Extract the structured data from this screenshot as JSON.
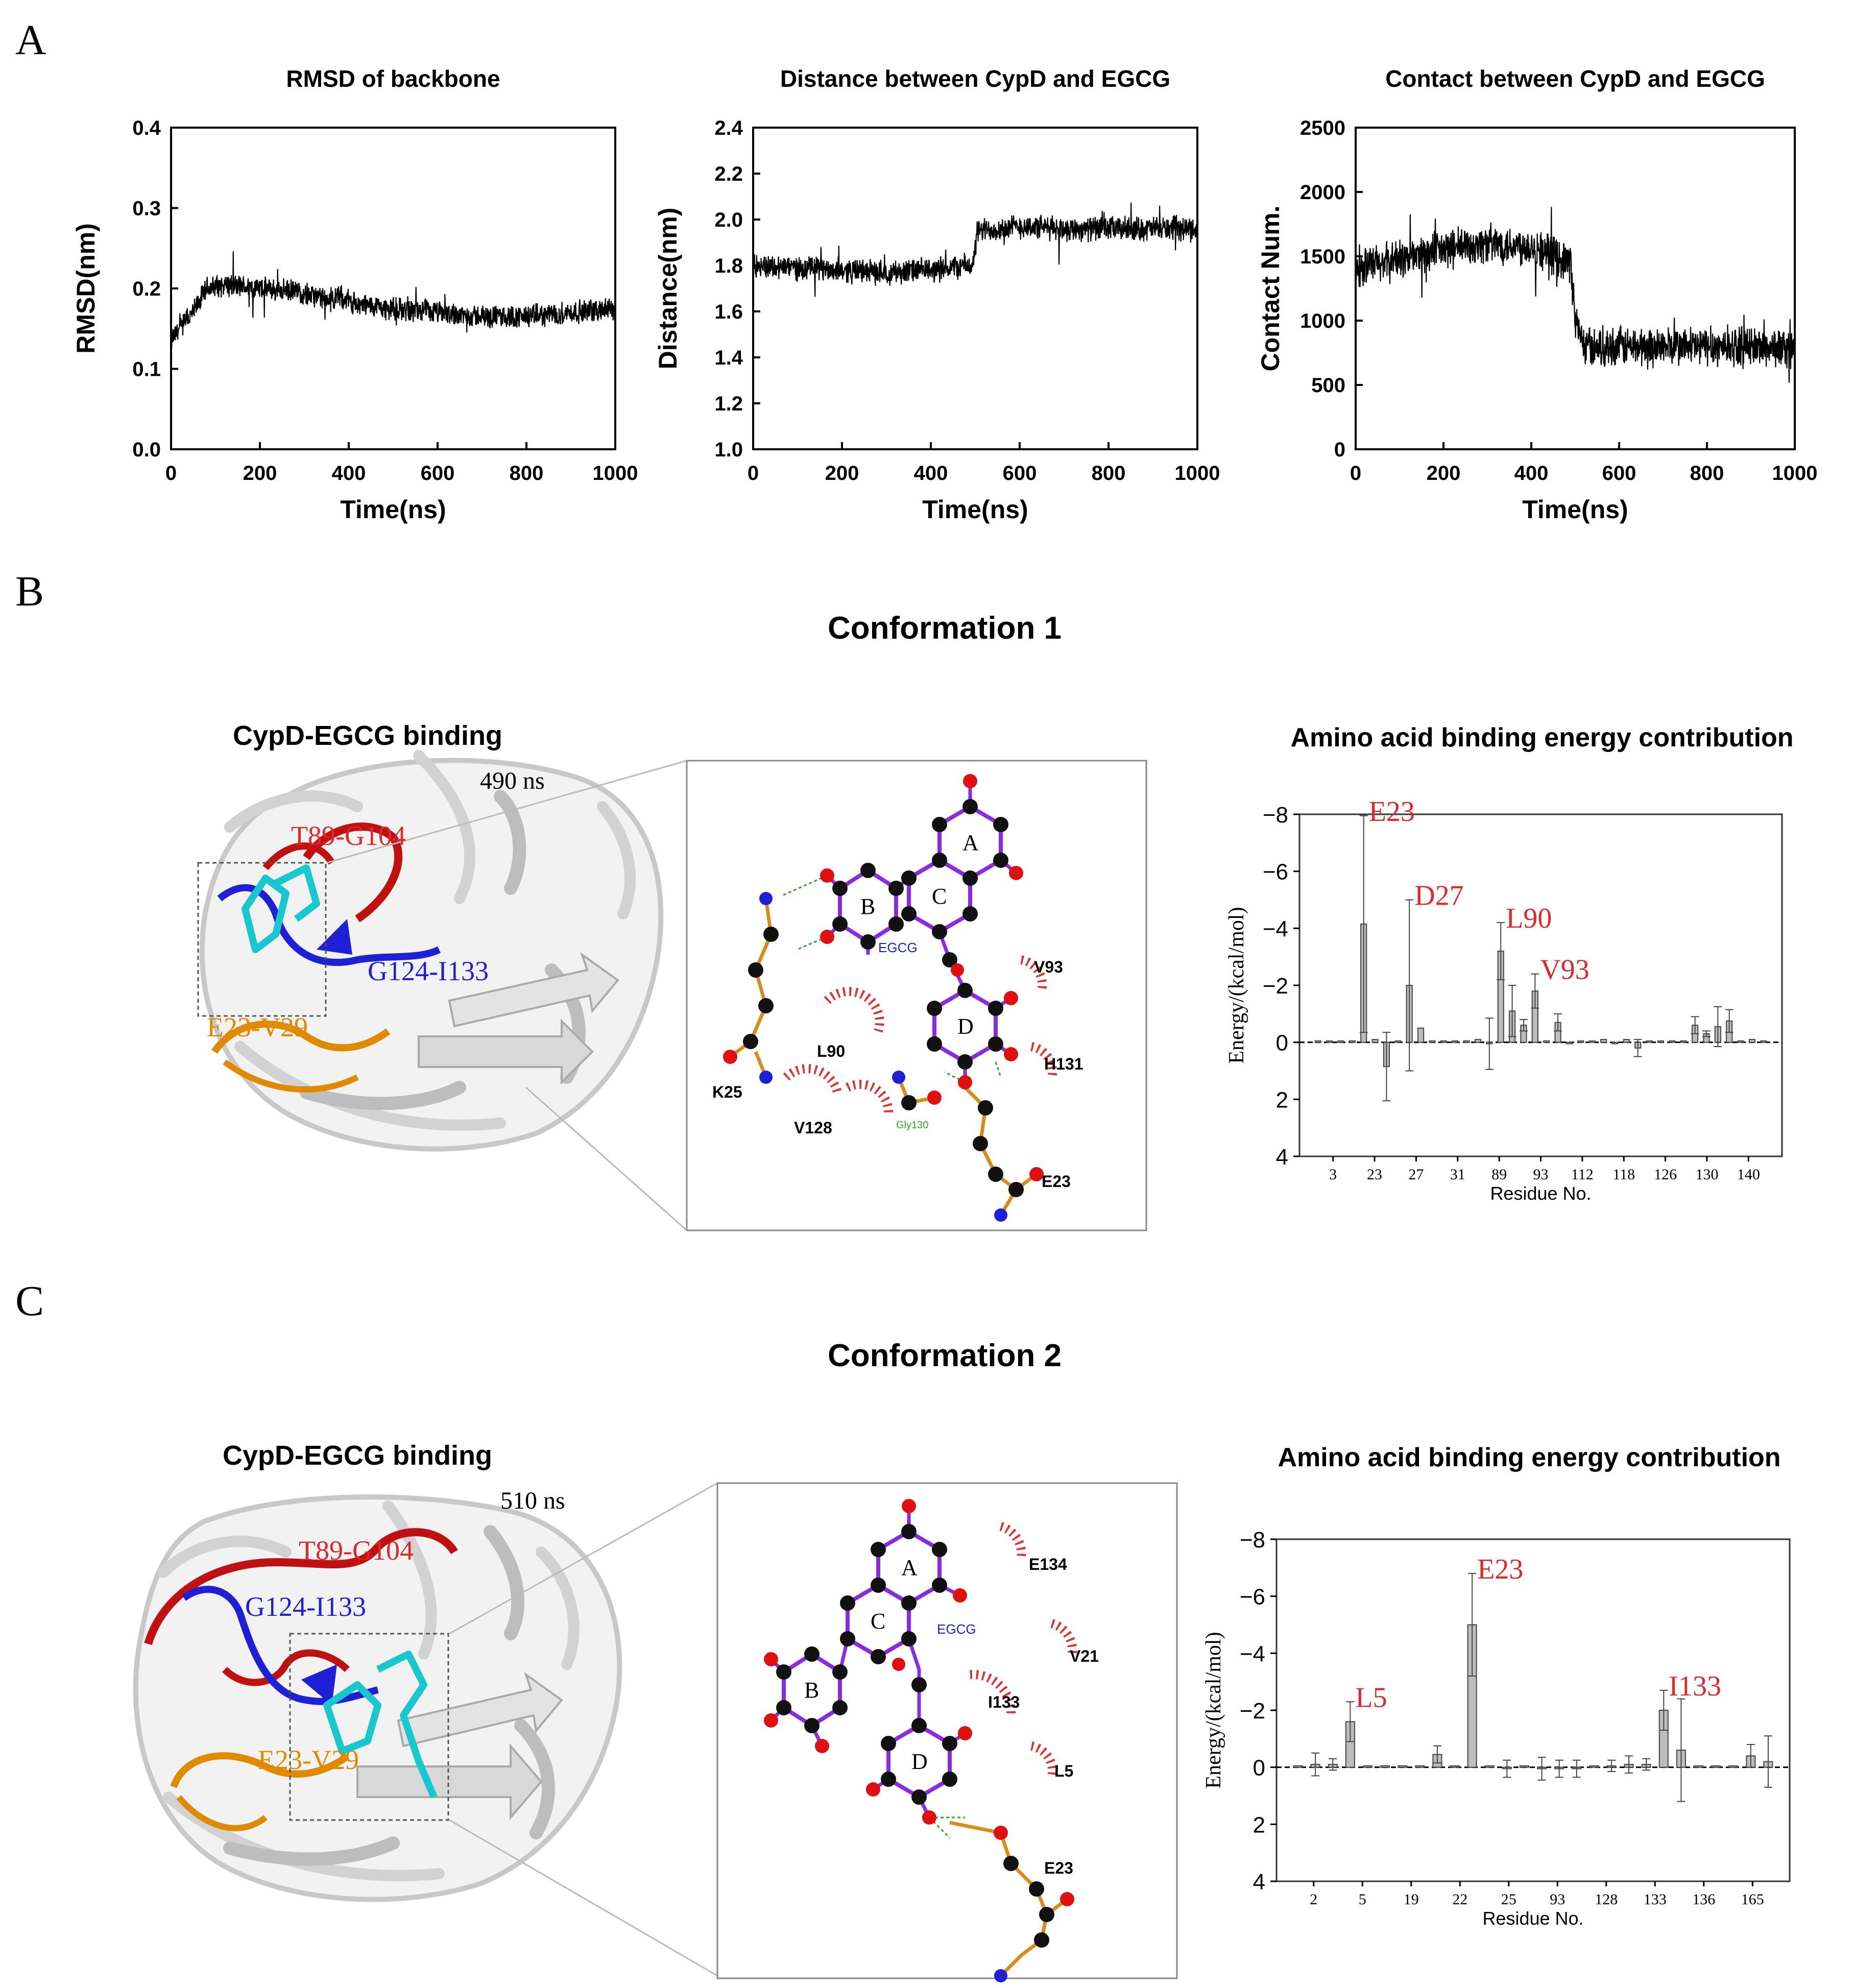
{
  "panels": {
    "A": {
      "letter": "A"
    },
    "B": {
      "letter": "B",
      "title": "Conformation 1",
      "binding_title": "CypD-EGCG binding",
      "time_label": "490 ns",
      "energy_title": "Amino acid binding energy contribution"
    },
    "C": {
      "letter": "C",
      "title": "Conformation 2",
      "binding_title": "CypD-EGCG binding",
      "time_label": "510 ns",
      "energy_title": "Amino acid binding energy contribution"
    }
  },
  "structure_labels": {
    "conf1": {
      "red": "T89-G104",
      "blue": "G124-I133",
      "orange": "E23-V29"
    },
    "conf2": {
      "red": "T89-G104",
      "blue": "G124-I133",
      "orange": "E23-V29"
    }
  },
  "ligplot": {
    "conf1": {
      "ligand": "EGCG",
      "rings": [
        "A",
        "B",
        "C",
        "D"
      ],
      "residues": [
        "V93",
        "L90",
        "K25",
        "H131",
        "V128",
        "Gly130",
        "E23"
      ]
    },
    "conf2": {
      "ligand": "EGCG",
      "rings": [
        "A",
        "B",
        "C",
        "D"
      ],
      "residues": [
        "E134",
        "V21",
        "I133",
        "L5",
        "E23"
      ]
    }
  },
  "colors": {
    "red": "#e0282a",
    "blue": "#1f1fd6",
    "orange": "#e08a00",
    "cyan": "#19c7cf",
    "bond_purple": "#8a2be2",
    "bond_orange": "#d98b1b",
    "hbond_green": "#33a02c",
    "gray": "#bfbfbf"
  },
  "chart_data": [
    {
      "id": "rmsd",
      "type": "line",
      "title": "RMSD of backbone",
      "xlabel": "Time(ns)",
      "ylabel": "RMSD(nm)",
      "xlim": [
        0,
        1000
      ],
      "ylim": [
        0.0,
        0.4
      ],
      "xticks": [
        0,
        200,
        400,
        600,
        800,
        1000
      ],
      "yticks": [
        "0.0",
        "0.1",
        "0.2",
        "0.3",
        "0.4"
      ],
      "trace_points": [
        [
          0,
          0.135
        ],
        [
          20,
          0.15
        ],
        [
          50,
          0.17
        ],
        [
          80,
          0.2
        ],
        [
          120,
          0.205
        ],
        [
          200,
          0.2
        ],
        [
          300,
          0.195
        ],
        [
          350,
          0.185
        ],
        [
          380,
          0.19
        ],
        [
          420,
          0.18
        ],
        [
          500,
          0.175
        ],
        [
          600,
          0.17
        ],
        [
          700,
          0.165
        ],
        [
          800,
          0.165
        ],
        [
          900,
          0.17
        ],
        [
          1000,
          0.175
        ]
      ],
      "noise": 0.012
    },
    {
      "id": "distance",
      "type": "line",
      "title": "Distance between CypD and EGCG",
      "xlabel": "Time(ns)",
      "ylabel": "Distance(nm)",
      "xlim": [
        0,
        1000
      ],
      "ylim": [
        1.0,
        2.4
      ],
      "xticks": [
        0,
        200,
        400,
        600,
        800,
        1000
      ],
      "yticks": [
        "1.0",
        "1.2",
        "1.4",
        "1.6",
        "1.8",
        "2.0",
        "2.2",
        "2.4"
      ],
      "trace_points": [
        [
          0,
          1.8
        ],
        [
          100,
          1.79
        ],
        [
          200,
          1.78
        ],
        [
          300,
          1.77
        ],
        [
          400,
          1.78
        ],
        [
          480,
          1.8
        ],
        [
          495,
          1.8
        ],
        [
          505,
          1.95
        ],
        [
          600,
          1.97
        ],
        [
          700,
          1.96
        ],
        [
          800,
          1.96
        ],
        [
          900,
          1.96
        ],
        [
          1000,
          1.96
        ]
      ],
      "noise": 0.045
    },
    {
      "id": "contact",
      "type": "line",
      "title": "Contact between CypD and EGCG",
      "xlabel": "Time(ns)",
      "ylabel": "Contact Num.",
      "xlim": [
        0,
        1000
      ],
      "ylim": [
        0,
        2500
      ],
      "xticks": [
        0,
        200,
        400,
        600,
        800,
        1000
      ],
      "yticks": [
        "0",
        "500",
        "1000",
        "1500",
        "2000",
        "2500"
      ],
      "trace_points": [
        [
          0,
          1400
        ],
        [
          100,
          1480
        ],
        [
          200,
          1550
        ],
        [
          300,
          1600
        ],
        [
          400,
          1580
        ],
        [
          490,
          1450
        ],
        [
          500,
          1000
        ],
        [
          520,
          800
        ],
        [
          600,
          800
        ],
        [
          700,
          800
        ],
        [
          800,
          800
        ],
        [
          900,
          800
        ],
        [
          1000,
          780
        ]
      ],
      "noise": 130
    },
    {
      "id": "energy1",
      "type": "bar",
      "xlabel": "Residue No.",
      "ylabel": "Energy/(kcal/mol)",
      "ylim": [
        4,
        -8
      ],
      "yticks": [
        "−8",
        "−6",
        "−4",
        "−2",
        "0",
        "2",
        "4"
      ],
      "xtick_labels": [
        "3",
        "23",
        "27",
        "31",
        "89",
        "93",
        "112",
        "118",
        "126",
        "130",
        "140"
      ],
      "values": [
        -0.05,
        -0.05,
        -0.05,
        -0.05,
        -4.15,
        -0.1,
        0.85,
        -0.05,
        -2.0,
        -0.5,
        -0.05,
        -0.05,
        -0.05,
        -0.05,
        -0.1,
        0.05,
        -3.2,
        -1.1,
        -0.6,
        -1.8,
        -0.05,
        -0.7,
        0.05,
        -0.05,
        -0.05,
        -0.1,
        0.05,
        -0.1,
        0.2,
        -0.05,
        -0.05,
        -0.05,
        -0.05,
        -0.6,
        -0.3,
        -0.55,
        -0.75,
        -0.05,
        -0.1,
        -0.05
      ],
      "errors": [
        0,
        0,
        0,
        0,
        3.8,
        0,
        1.2,
        0,
        3.0,
        0,
        0,
        0,
        0,
        0,
        0,
        0.9,
        1.0,
        0.9,
        0.2,
        0.6,
        0,
        0.3,
        0,
        0,
        0,
        0,
        0,
        0,
        0.3,
        0,
        0,
        0,
        0,
        0.3,
        0.1,
        0.7,
        0.4,
        0,
        0,
        0
      ],
      "annotations": [
        {
          "text": "E23",
          "bar": 4
        },
        {
          "text": "D27",
          "bar": 8
        },
        {
          "text": "L90",
          "bar": 16
        },
        {
          "text": "V93",
          "bar": 19
        }
      ]
    },
    {
      "id": "energy2",
      "type": "bar",
      "xlabel": "Residue No.",
      "ylabel": "Energy/(kcal/mol)",
      "ylim": [
        4,
        -8
      ],
      "yticks": [
        "−8",
        "−6",
        "−4",
        "−2",
        "0",
        "2",
        "4"
      ],
      "xtick_labels": [
        "2",
        "5",
        "19",
        "22",
        "25",
        "93",
        "128",
        "133",
        "136",
        "165"
      ],
      "values": [
        -0.05,
        -0.1,
        -0.1,
        -1.6,
        -0.05,
        -0.05,
        -0.05,
        -0.05,
        -0.45,
        -0.05,
        -5.0,
        -0.05,
        0.05,
        -0.05,
        0.05,
        0.05,
        0.05,
        -0.05,
        -0.05,
        -0.1,
        -0.1,
        -2.0,
        -0.6,
        -0.05,
        -0.05,
        -0.05,
        -0.4,
        -0.2
      ],
      "errors": [
        0,
        0.4,
        0.2,
        0.7,
        0,
        0,
        0,
        0,
        0.3,
        0,
        1.8,
        0,
        0.3,
        0,
        0.4,
        0.3,
        0.3,
        0,
        0.2,
        0.3,
        0.2,
        0.7,
        1.8,
        0,
        0,
        0,
        0.4,
        0.9
      ],
      "annotations": [
        {
          "text": "L5",
          "bar": 3
        },
        {
          "text": "E23",
          "bar": 10
        },
        {
          "text": "I133",
          "bar": 21
        }
      ]
    }
  ]
}
